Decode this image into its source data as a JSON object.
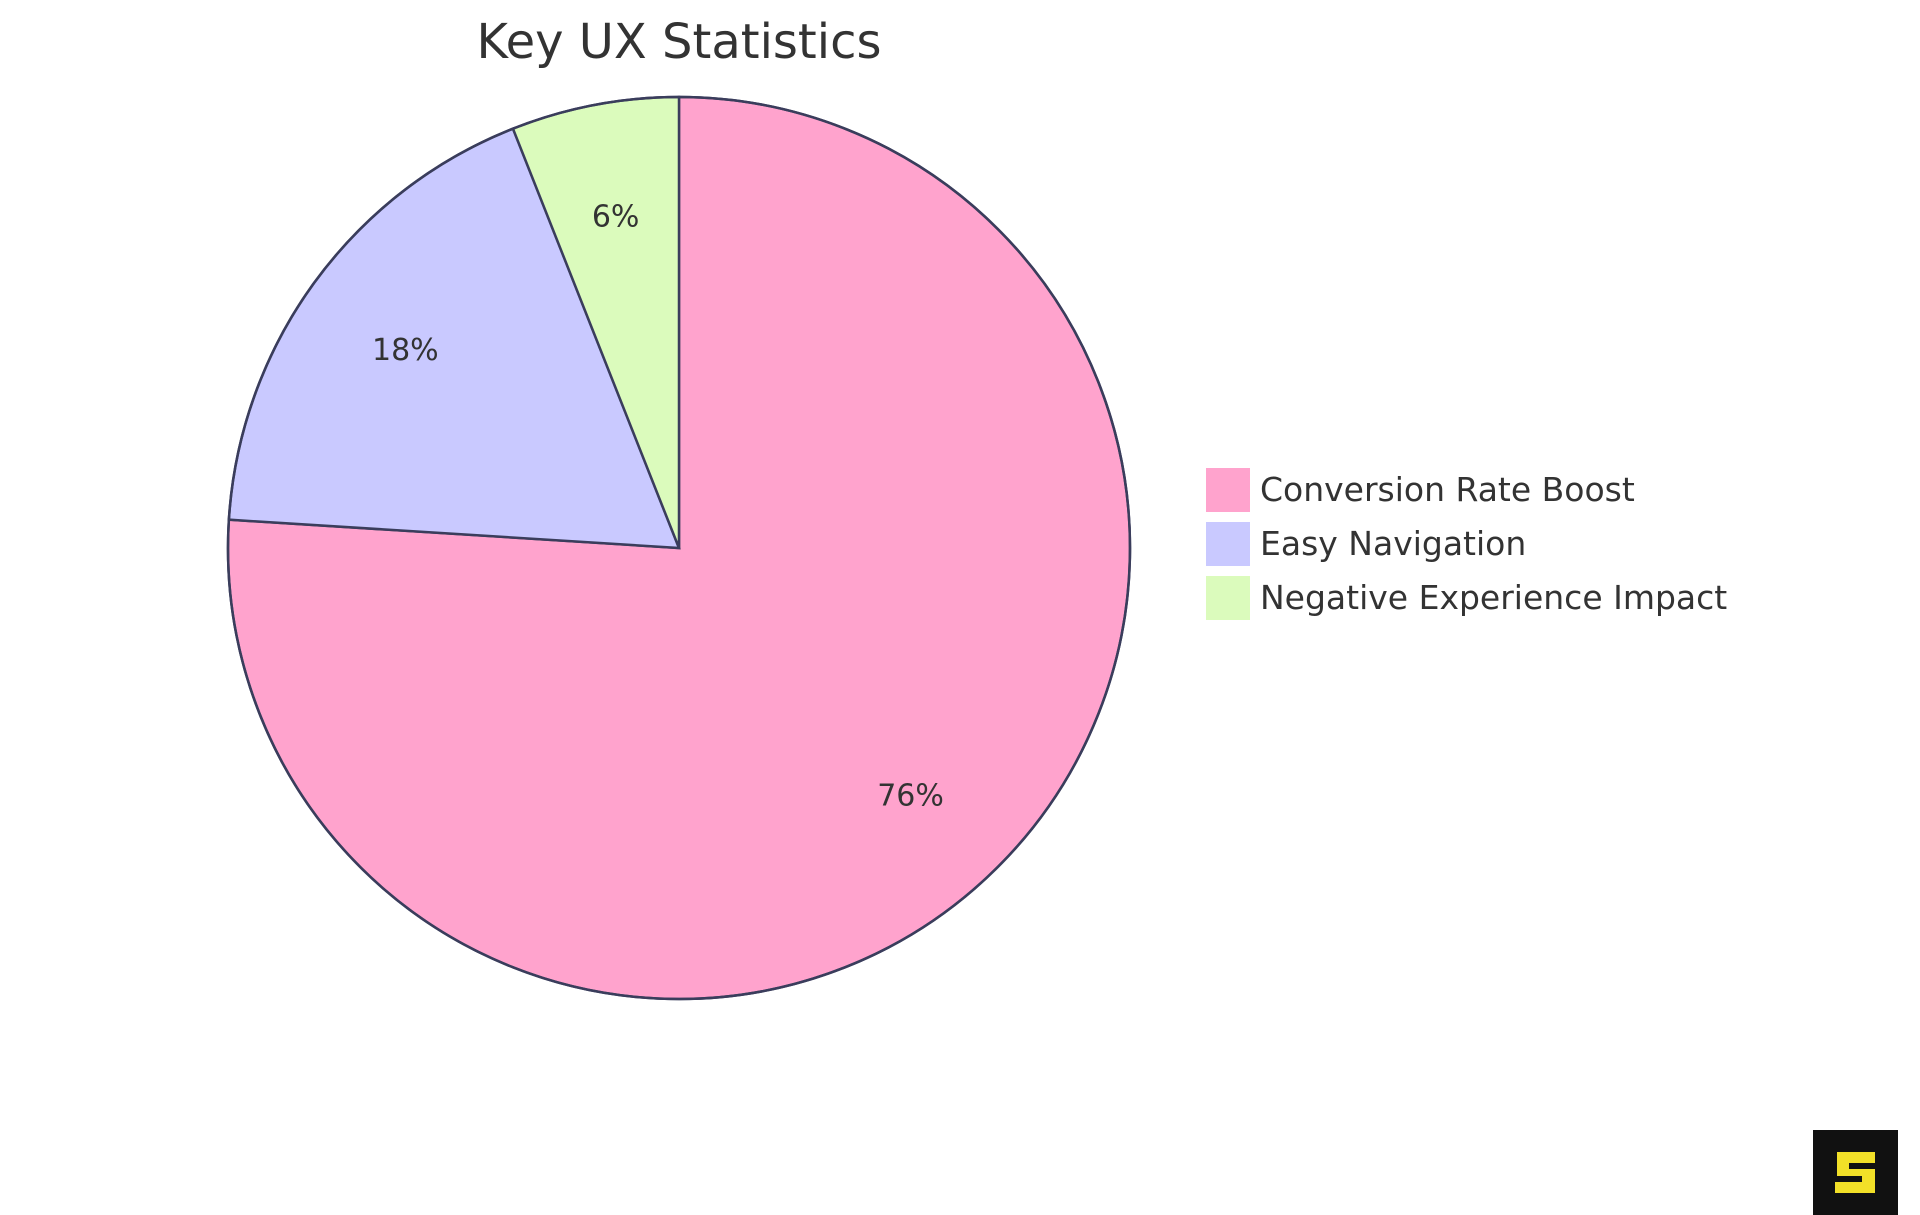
{
  "chart_data": {
    "type": "pie",
    "title": "Key UX Statistics",
    "series": [
      {
        "name": "Conversion Rate Boost",
        "value": 76,
        "label": "76%",
        "color": "#FFA3CD"
      },
      {
        "name": "Easy Navigation",
        "value": 18,
        "label": "18%",
        "color": "#C9C9FF"
      },
      {
        "name": "Negative Experience Impact",
        "value": 6,
        "label": "6%",
        "color": "#DBFBBC"
      }
    ],
    "legend_position": "right",
    "outline_color": "#3A3D5C"
  },
  "logo": {
    "icon": "s-logo-icon",
    "background": "#111111",
    "accent": "#F2E028"
  }
}
